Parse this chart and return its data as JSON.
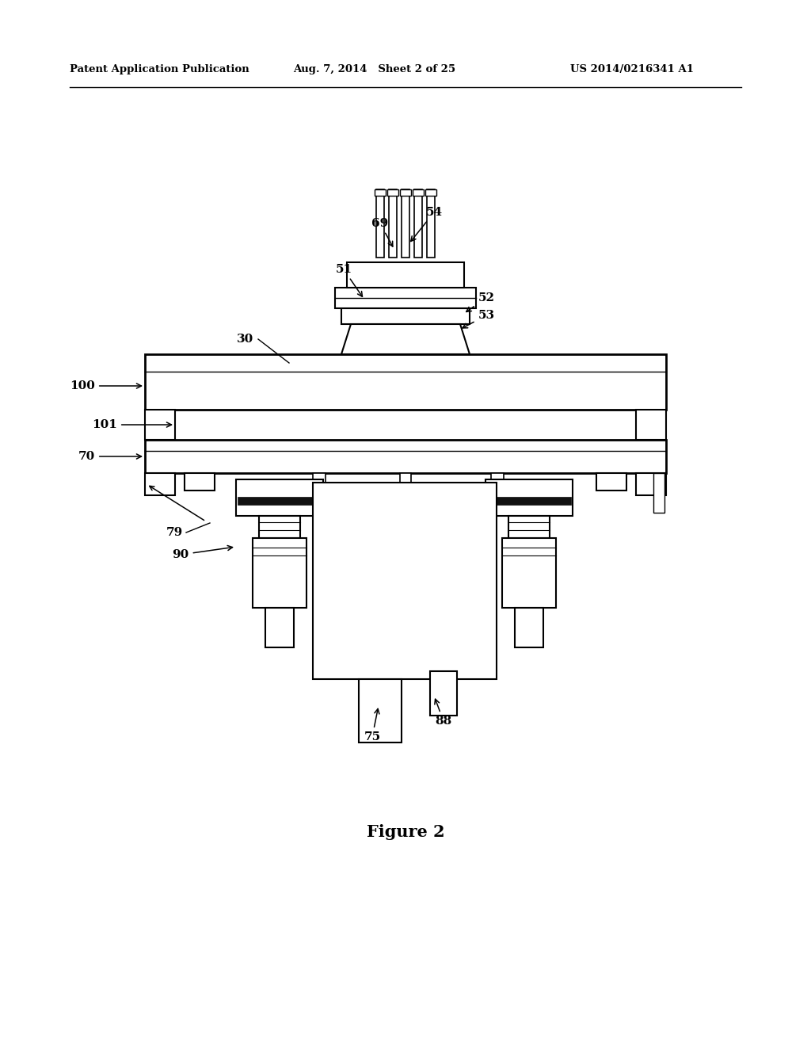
{
  "bg_color": "#ffffff",
  "line_color": "#000000",
  "header_left": "Patent Application Publication",
  "header_mid": "Aug. 7, 2014   Sheet 2 of 25",
  "header_right": "US 2014/0216341 A1",
  "figure_caption": "Figure 2"
}
